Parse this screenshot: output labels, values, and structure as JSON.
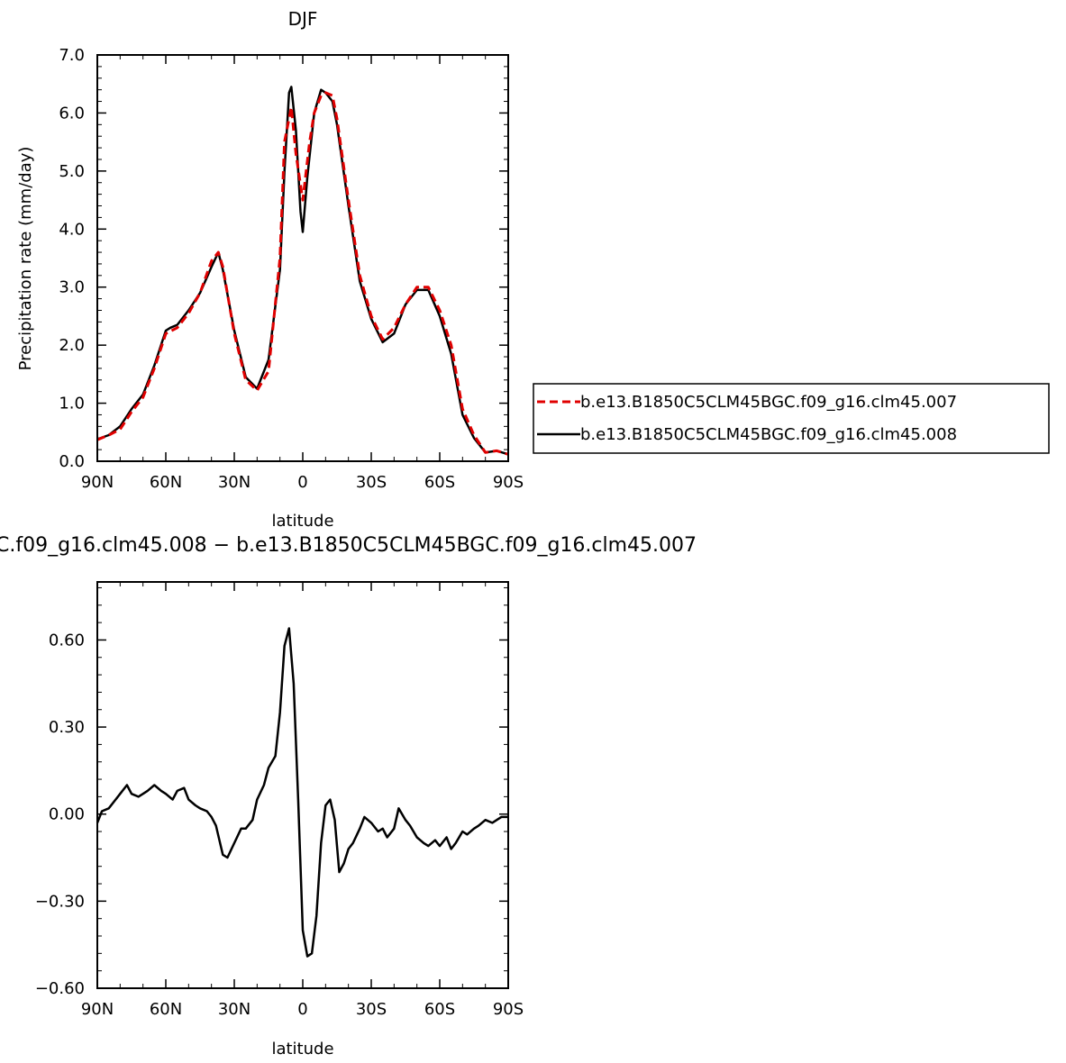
{
  "chart_data": [
    {
      "type": "line",
      "title": "DJF",
      "xlabel": "latitude",
      "ylabel": "Precipitation rate (mm/day)",
      "xlim": [
        -90,
        90
      ],
      "ylim": [
        0,
        7
      ],
      "x_ticks": [
        "90N",
        "60N",
        "30N",
        "0",
        "30S",
        "60S",
        "90S"
      ],
      "y_ticks": [
        "0.0",
        "1.0",
        "2.0",
        "3.0",
        "4.0",
        "5.0",
        "6.0",
        "7.0"
      ],
      "legend_position": "right",
      "series": [
        {
          "name": "b.e13.B1850C5CLM45BGC.f09_g16.clm45.007",
          "color": "#e00000",
          "style": "dashed",
          "x": [
            -90,
            -85,
            -80,
            -75,
            -70,
            -65,
            -60,
            -55,
            -50,
            -45,
            -40,
            -37,
            -35,
            -30,
            -25,
            -20,
            -15,
            -10,
            -8,
            -5,
            -3,
            0,
            3,
            5,
            8,
            10,
            13,
            15,
            20,
            25,
            30,
            35,
            40,
            45,
            50,
            55,
            60,
            65,
            70,
            75,
            80,
            85,
            90
          ],
          "y": [
            0.37,
            0.45,
            0.55,
            0.85,
            1.1,
            1.6,
            2.2,
            2.3,
            2.55,
            2.9,
            3.45,
            3.6,
            3.35,
            2.2,
            1.4,
            1.22,
            1.55,
            3.5,
            5.5,
            6.1,
            5.3,
            4.5,
            5.5,
            6.0,
            6.3,
            6.35,
            6.3,
            5.9,
            4.5,
            3.2,
            2.5,
            2.1,
            2.3,
            2.7,
            3.0,
            3.0,
            2.6,
            2.0,
            0.9,
            0.45,
            0.15,
            0.18,
            0.12
          ]
        },
        {
          "name": "b.e13.B1850C5CLM45BGC.f09_g16.clm45.008",
          "color": "#000000",
          "style": "solid",
          "x": [
            -90,
            -85,
            -80,
            -75,
            -70,
            -65,
            -60,
            -58,
            -55,
            -50,
            -45,
            -40,
            -37,
            -35,
            -30,
            -25,
            -20,
            -15,
            -10,
            -8,
            -6,
            -5,
            -3,
            -1,
            0,
            2,
            5,
            8,
            10,
            13,
            15,
            20,
            25,
            30,
            35,
            40,
            45,
            50,
            55,
            60,
            65,
            70,
            75,
            80,
            85,
            90
          ],
          "y": [
            0.38,
            0.45,
            0.6,
            0.9,
            1.15,
            1.65,
            2.25,
            2.3,
            2.35,
            2.6,
            2.9,
            3.35,
            3.6,
            3.3,
            2.25,
            1.45,
            1.25,
            1.75,
            3.3,
            5.0,
            6.35,
            6.45,
            5.7,
            4.3,
            3.95,
            4.9,
            6.0,
            6.4,
            6.35,
            6.2,
            5.8,
            4.4,
            3.1,
            2.45,
            2.05,
            2.2,
            2.7,
            2.95,
            2.95,
            2.5,
            1.85,
            0.8,
            0.4,
            0.15,
            0.18,
            0.12
          ]
        }
      ]
    },
    {
      "type": "line",
      "title": "C.f09_g16.clm45.008 − b.e13.B1850C5CLM45BGC.f09_g16.clm45.007",
      "xlabel": "latitude",
      "ylabel": "",
      "xlim": [
        -90,
        90
      ],
      "ylim": [
        -0.6,
        0.8
      ],
      "x_ticks": [
        "90N",
        "60N",
        "30N",
        "0",
        "30S",
        "60S",
        "90S"
      ],
      "y_ticks": [
        "−0.60",
        "−0.30",
        "0.00",
        "0.30",
        "0.60"
      ],
      "series": [
        {
          "color": "#000000",
          "style": "solid",
          "x": [
            -90,
            -88,
            -85,
            -82,
            -80,
            -77,
            -75,
            -72,
            -70,
            -68,
            -65,
            -62,
            -60,
            -57,
            -55,
            -52,
            -50,
            -47,
            -45,
            -42,
            -40,
            -38,
            -35,
            -33,
            -30,
            -27,
            -25,
            -22,
            -20,
            -17,
            -15,
            -12,
            -10,
            -8,
            -6,
            -4,
            -2,
            0,
            2,
            4,
            6,
            8,
            10,
            12,
            14,
            16,
            18,
            20,
            22,
            25,
            27,
            30,
            33,
            35,
            37,
            40,
            42,
            45,
            47,
            50,
            53,
            55,
            58,
            60,
            63,
            65,
            67,
            70,
            72,
            75,
            77,
            80,
            83,
            85,
            87,
            90
          ],
          "y": [
            -0.03,
            0.01,
            0.02,
            0.05,
            0.07,
            0.1,
            0.07,
            0.06,
            0.07,
            0.08,
            0.1,
            0.08,
            0.07,
            0.05,
            0.08,
            0.09,
            0.05,
            0.03,
            0.02,
            0.01,
            -0.01,
            -0.04,
            -0.14,
            -0.15,
            -0.1,
            -0.05,
            -0.05,
            -0.02,
            0.05,
            0.1,
            0.16,
            0.2,
            0.35,
            0.58,
            0.64,
            0.45,
            0.05,
            -0.4,
            -0.49,
            -0.48,
            -0.35,
            -0.1,
            0.03,
            0.05,
            -0.02,
            -0.2,
            -0.17,
            -0.12,
            -0.1,
            -0.05,
            -0.01,
            -0.03,
            -0.06,
            -0.05,
            -0.08,
            -0.05,
            0.02,
            -0.02,
            -0.04,
            -0.08,
            -0.1,
            -0.11,
            -0.09,
            -0.11,
            -0.08,
            -0.12,
            -0.1,
            -0.06,
            -0.07,
            -0.05,
            -0.04,
            -0.02,
            -0.03,
            -0.02,
            -0.01,
            -0.01
          ]
        }
      ]
    }
  ]
}
